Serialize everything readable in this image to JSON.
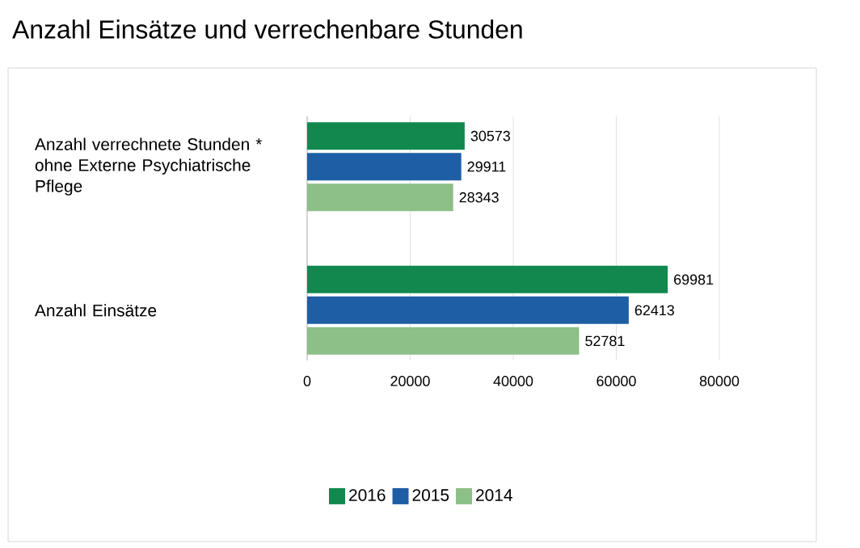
{
  "chart_data": {
    "type": "bar",
    "orientation": "horizontal",
    "title": "Anzahl Einsätze und verrechenbare Stunden",
    "categories": [
      "Anzahl verrechnete Stunden * ohne Externe Psychiatrische Pflege",
      "Anzahl Einsätze"
    ],
    "series": [
      {
        "name": "2016",
        "color": "#12884f",
        "values": [
          30573,
          69981
        ]
      },
      {
        "name": "2015",
        "color": "#1e5ea5",
        "values": [
          29911,
          62413
        ]
      },
      {
        "name": "2014",
        "color": "#8dbf88",
        "values": [
          28343,
          52781
        ]
      }
    ],
    "xlim": [
      0,
      80000
    ],
    "xticks": [
      0,
      20000,
      40000,
      60000,
      80000
    ],
    "grid": "x",
    "legend": "bottom",
    "data_labels": true
  }
}
